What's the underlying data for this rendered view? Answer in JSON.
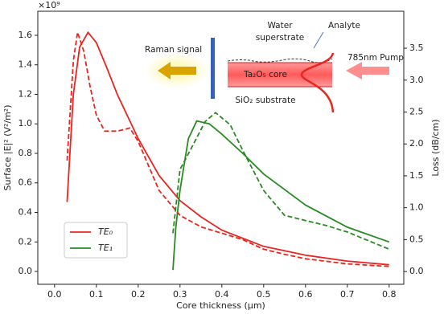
{
  "chart_data": {
    "type": "line",
    "xlabel": "Core thickness (μm)",
    "ylabel": "Surface |E|² (V²/m²)",
    "y2label": "Loss (dB/cm)",
    "y_multiplier": "×10⁹",
    "xlim": [
      -0.04,
      0.835
    ],
    "ylim": [
      -0.087,
      1.763
    ],
    "y2lim": [
      -0.2,
      4.08
    ],
    "xticks": [
      {
        "value": 0,
        "label": "0.0"
      },
      0.1,
      0.2,
      0.3,
      0.4,
      0.5,
      0.6,
      0.7,
      0.8
    ],
    "yticks": [
      {
        "value": 0,
        "label": "0.0"
      },
      0.2,
      0.4,
      0.6,
      0.8,
      {
        "value": 1,
        "label": "1.0"
      },
      1.2,
      1.4,
      1.6
    ],
    "y2ticks": [
      {
        "value": 0,
        "label": "0.0"
      },
      0.5,
      {
        "value": 1,
        "label": "1.0"
      },
      1.5,
      {
        "value": 2,
        "label": "2.0"
      },
      2.5,
      {
        "value": 3,
        "label": "3.0"
      },
      3.5
    ],
    "legend": "lower left",
    "series": [
      {
        "name": "TE₀",
        "color": "#e8251f",
        "x": [
          0.03,
          0.045,
          0.06,
          0.08,
          0.1,
          0.125,
          0.15,
          0.2,
          0.25,
          0.3,
          0.35,
          0.4,
          0.5,
          0.6,
          0.7,
          0.8
        ],
        "values": [
          0.47,
          1.2,
          1.52,
          1.62,
          1.55,
          1.38,
          1.2,
          0.9,
          0.65,
          0.48,
          0.37,
          0.28,
          0.17,
          0.11,
          0.07,
          0.045
        ]
      },
      {
        "name": "TE₁",
        "color": "#2a8a22",
        "x": [
          0.283,
          0.29,
          0.3,
          0.32,
          0.34,
          0.37,
          0.4,
          0.45,
          0.5,
          0.6,
          0.7,
          0.8
        ],
        "values": [
          0.01,
          0.3,
          0.55,
          0.9,
          1.02,
          1.0,
          0.93,
          0.8,
          0.66,
          0.45,
          0.3,
          0.2
        ]
      },
      {
        "color": "#e8251f",
        "axis": "y2",
        "dashed": true,
        "x": [
          0.03,
          0.045,
          0.055,
          0.07,
          0.085,
          0.1,
          0.12,
          0.15,
          0.18,
          0.2,
          0.25,
          0.3,
          0.35,
          0.4,
          0.45,
          0.5,
          0.55,
          0.6,
          0.7,
          0.8
        ],
        "values": [
          1.74,
          3.3,
          3.75,
          3.45,
          2.9,
          2.45,
          2.2,
          2.2,
          2.25,
          2.04,
          1.27,
          0.88,
          0.7,
          0.6,
          0.5,
          0.35,
          0.27,
          0.2,
          0.12,
          0.08
        ]
      },
      {
        "color": "#2a8a22",
        "axis": "y2",
        "dashed": true,
        "x": [
          0.283,
          0.3,
          0.33,
          0.36,
          0.385,
          0.42,
          0.45,
          0.5,
          0.55,
          0.6,
          0.65,
          0.7,
          0.8
        ],
        "values": [
          0.6,
          1.6,
          1.97,
          2.35,
          2.49,
          2.3,
          1.9,
          1.27,
          0.88,
          0.8,
          0.72,
          0.62,
          0.35
        ]
      }
    ],
    "annotations": [
      "Raman signal",
      "Water",
      "superstrate",
      "Analyte",
      "785nm Pump",
      "Ta₂O₅ core",
      "SiO₂ substrate"
    ]
  }
}
